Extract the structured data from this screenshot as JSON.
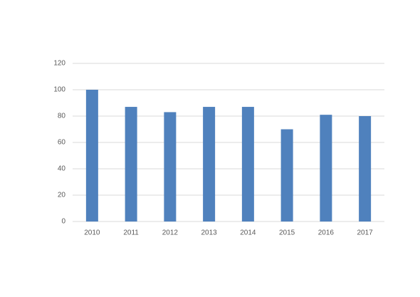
{
  "chart_data": {
    "type": "bar",
    "categories": [
      "2010",
      "2011",
      "2012",
      "2013",
      "2014",
      "2015",
      "2016",
      "2017"
    ],
    "values": [
      100,
      87,
      83,
      87,
      87,
      70,
      81,
      80
    ],
    "color": "#4f81bd",
    "ylim": [
      0,
      120
    ],
    "yticks": [
      0,
      20,
      40,
      60,
      80,
      100,
      120
    ],
    "grid": true
  }
}
